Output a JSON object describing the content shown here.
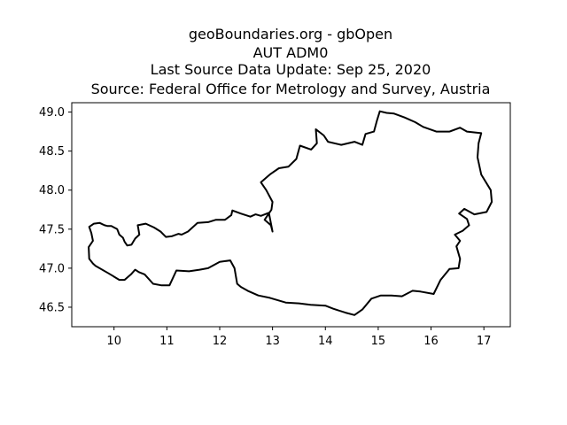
{
  "title_lines": [
    "geoBoundaries.org - gbOpen",
    "AUT ADM0",
    "Last Source Data Update: Sep 25, 2020",
    "Source: Federal Office for Metrology and Survey, Austria"
  ],
  "chart_data": {
    "type": "map-outline",
    "xlim": [
      9.2,
      17.5
    ],
    "ylim": [
      46.25,
      49.12
    ],
    "x_ticks": [
      "10",
      "11",
      "12",
      "13",
      "14",
      "15",
      "16",
      "17"
    ],
    "y_ticks": [
      "46.5",
      "47.0",
      "47.5",
      "48.0",
      "48.5",
      "49.0"
    ],
    "grid": false,
    "line_color": "#000000",
    "boundary": [
      [
        9.53,
        47.53
      ],
      [
        9.62,
        47.57
      ],
      [
        9.73,
        47.58
      ],
      [
        9.82,
        47.55
      ],
      [
        9.88,
        47.54
      ],
      [
        9.95,
        47.54
      ],
      [
        10.06,
        47.5
      ],
      [
        10.1,
        47.43
      ],
      [
        10.17,
        47.39
      ],
      [
        10.2,
        47.34
      ],
      [
        10.25,
        47.29
      ],
      [
        10.33,
        47.3
      ],
      [
        10.4,
        47.38
      ],
      [
        10.48,
        47.43
      ],
      [
        10.45,
        47.55
      ],
      [
        10.6,
        47.57
      ],
      [
        10.76,
        47.52
      ],
      [
        10.88,
        47.47
      ],
      [
        10.98,
        47.4
      ],
      [
        11.1,
        47.41
      ],
      [
        11.22,
        47.44
      ],
      [
        11.28,
        47.43
      ],
      [
        11.4,
        47.47
      ],
      [
        11.58,
        47.58
      ],
      [
        11.78,
        47.59
      ],
      [
        11.93,
        47.62
      ],
      [
        12.1,
        47.62
      ],
      [
        12.22,
        47.68
      ],
      [
        12.24,
        47.74
      ],
      [
        12.4,
        47.7
      ],
      [
        12.58,
        47.66
      ],
      [
        12.68,
        47.69
      ],
      [
        12.78,
        47.67
      ],
      [
        12.93,
        47.71
      ],
      [
        13.0,
        47.47
      ],
      [
        12.97,
        47.55
      ],
      [
        12.85,
        47.62
      ],
      [
        12.98,
        47.75
      ],
      [
        13.0,
        47.85
      ],
      [
        12.88,
        48.0
      ],
      [
        12.78,
        48.1
      ],
      [
        12.95,
        48.2
      ],
      [
        13.12,
        48.28
      ],
      [
        13.3,
        48.3
      ],
      [
        13.45,
        48.4
      ],
      [
        13.52,
        48.57
      ],
      [
        13.73,
        48.52
      ],
      [
        13.84,
        48.6
      ],
      [
        13.82,
        48.78
      ],
      [
        13.97,
        48.7
      ],
      [
        14.05,
        48.62
      ],
      [
        14.3,
        48.58
      ],
      [
        14.55,
        48.62
      ],
      [
        14.7,
        48.58
      ],
      [
        14.76,
        48.72
      ],
      [
        14.92,
        48.75
      ],
      [
        14.98,
        48.9
      ],
      [
        15.03,
        49.01
      ],
      [
        15.16,
        48.99
      ],
      [
        15.3,
        48.98
      ],
      [
        15.5,
        48.93
      ],
      [
        15.7,
        48.87
      ],
      [
        15.85,
        48.81
      ],
      [
        16.1,
        48.75
      ],
      [
        16.35,
        48.75
      ],
      [
        16.55,
        48.8
      ],
      [
        16.68,
        48.75
      ],
      [
        16.95,
        48.73
      ],
      [
        16.9,
        48.6
      ],
      [
        16.88,
        48.42
      ],
      [
        16.95,
        48.2
      ],
      [
        17.13,
        48.0
      ],
      [
        17.15,
        47.85
      ],
      [
        17.05,
        47.72
      ],
      [
        16.82,
        47.69
      ],
      [
        16.63,
        47.76
      ],
      [
        16.53,
        47.7
      ],
      [
        16.68,
        47.63
      ],
      [
        16.72,
        47.55
      ],
      [
        16.6,
        47.48
      ],
      [
        16.45,
        47.43
      ],
      [
        16.55,
        47.35
      ],
      [
        16.48,
        47.28
      ],
      [
        16.55,
        47.12
      ],
      [
        16.52,
        47.0
      ],
      [
        16.35,
        46.99
      ],
      [
        16.18,
        46.85
      ],
      [
        16.05,
        46.67
      ],
      [
        15.8,
        46.7
      ],
      [
        15.65,
        46.71
      ],
      [
        15.45,
        46.64
      ],
      [
        15.25,
        46.65
      ],
      [
        15.05,
        46.65
      ],
      [
        14.87,
        46.61
      ],
      [
        14.7,
        46.47
      ],
      [
        14.55,
        46.4
      ],
      [
        14.38,
        46.43
      ],
      [
        14.15,
        46.48
      ],
      [
        14.0,
        46.52
      ],
      [
        13.72,
        46.53
      ],
      [
        13.5,
        46.55
      ],
      [
        13.25,
        46.56
      ],
      [
        12.95,
        46.62
      ],
      [
        12.73,
        46.65
      ],
      [
        12.53,
        46.71
      ],
      [
        12.4,
        46.76
      ],
      [
        12.33,
        46.8
      ],
      [
        12.28,
        47.0
      ],
      [
        12.2,
        47.1
      ],
      [
        12.0,
        47.08
      ],
      [
        11.78,
        47.0
      ],
      [
        11.62,
        46.98
      ],
      [
        11.42,
        46.96
      ],
      [
        11.18,
        46.97
      ],
      [
        11.05,
        46.78
      ],
      [
        10.9,
        46.78
      ],
      [
        10.74,
        46.8
      ],
      [
        10.58,
        46.92
      ],
      [
        10.47,
        46.95
      ],
      [
        10.4,
        46.98
      ],
      [
        10.32,
        46.92
      ],
      [
        10.2,
        46.85
      ],
      [
        10.1,
        46.85
      ],
      [
        9.98,
        46.9
      ],
      [
        9.88,
        46.94
      ],
      [
        9.65,
        47.03
      ],
      [
        9.6,
        47.06
      ],
      [
        9.53,
        47.12
      ],
      [
        9.52,
        47.27
      ],
      [
        9.6,
        47.35
      ],
      [
        9.57,
        47.45
      ],
      [
        9.53,
        47.53
      ]
    ]
  }
}
